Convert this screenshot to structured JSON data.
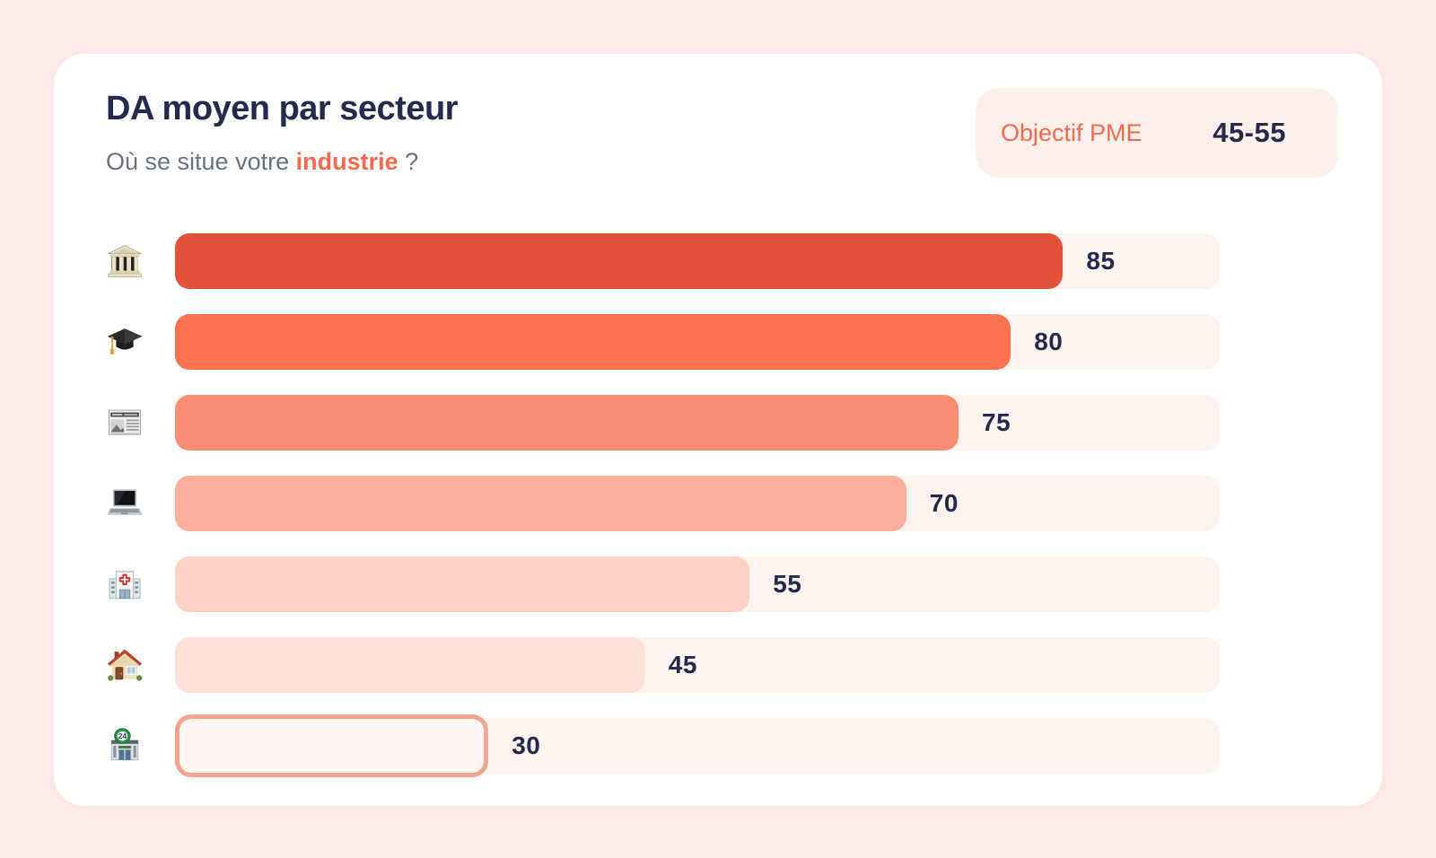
{
  "theme": {
    "page_bg": "#fcebe7",
    "card_bg": "#ffffff",
    "navy": "#242a4d",
    "gray": "#6b7280",
    "accent_orange": "#f56a4d",
    "track": "#fdf3ef",
    "badge_bg": "#fdefea"
  },
  "header": {
    "title": "DA moyen par secteur",
    "subtitle_prefix": "Où se situe votre ",
    "subtitle_highlight": "industrie",
    "subtitle_suffix": " ?"
  },
  "objective_badge": {
    "label": "Objectif PME",
    "value": "45-55"
  },
  "chart_data": {
    "type": "bar",
    "orientation": "horizontal",
    "title": "DA moyen par secteur",
    "xlim": [
      0,
      100
    ],
    "grid": false,
    "legend": false,
    "categories": [
      "bank",
      "graduation-cap",
      "newspaper",
      "laptop",
      "hospital",
      "house",
      "convenience-store"
    ],
    "values": [
      85,
      80,
      75,
      70,
      55,
      45,
      30
    ],
    "track_color": "#fdf3ef",
    "value_label_color": "#242a4d",
    "rows": [
      {
        "icon": "bank",
        "value": 85,
        "fill_color": "#e2513b",
        "outlined": false
      },
      {
        "icon": "graduation-cap",
        "value": 80,
        "fill_color": "#fc7150",
        "outlined": false
      },
      {
        "icon": "newspaper",
        "value": 75,
        "fill_color": "#fa8d74",
        "outlined": false
      },
      {
        "icon": "laptop",
        "value": 70,
        "fill_color": "#fcae9a",
        "outlined": false
      },
      {
        "icon": "hospital",
        "value": 55,
        "fill_color": "#fdd2c4",
        "outlined": false
      },
      {
        "icon": "house",
        "value": 45,
        "fill_color": "#fce1d8",
        "outlined": false
      },
      {
        "icon": "convenience-store",
        "value": 30,
        "fill_color": "#fef6f2",
        "outlined": true,
        "border_color": "#f3a48f"
      }
    ]
  }
}
